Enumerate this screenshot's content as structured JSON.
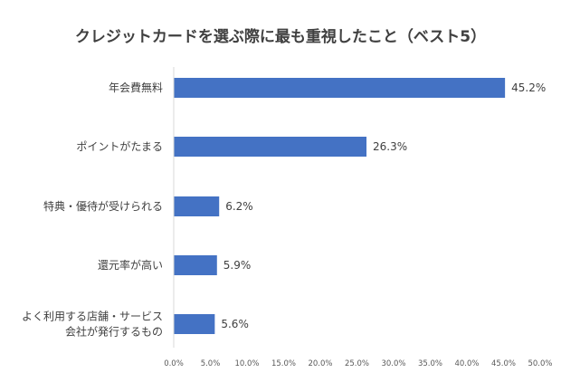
{
  "chart_data": {
    "type": "bar",
    "orientation": "horizontal",
    "title": "クレジットカードを選ぶ際に最も重視したこと（ベスト5）",
    "categories": [
      [
        "年会費無料"
      ],
      [
        "ポイントがたまる"
      ],
      [
        "特典・優待が受けられる"
      ],
      [
        "還元率が高い"
      ],
      [
        "よく利用する店舗・サービス",
        "会社が発行するもの"
      ]
    ],
    "values": [
      45.2,
      26.3,
      6.2,
      5.9,
      5.6
    ],
    "value_labels": [
      "45.2%",
      "26.3%",
      "6.2%",
      "5.9%",
      "5.6%"
    ],
    "xlim": [
      0,
      50
    ],
    "xticks": [
      0,
      5,
      10,
      15,
      20,
      25,
      30,
      35,
      40,
      45,
      50
    ],
    "xtick_labels": [
      "0.0%",
      "5.0%",
      "10.0%",
      "15.0%",
      "20.0%",
      "25.0%",
      "30.0%",
      "35.0%",
      "40.0%",
      "45.0%",
      "50.0%"
    ],
    "bar_color": "#4472C4",
    "grid": false,
    "legend": "none"
  }
}
